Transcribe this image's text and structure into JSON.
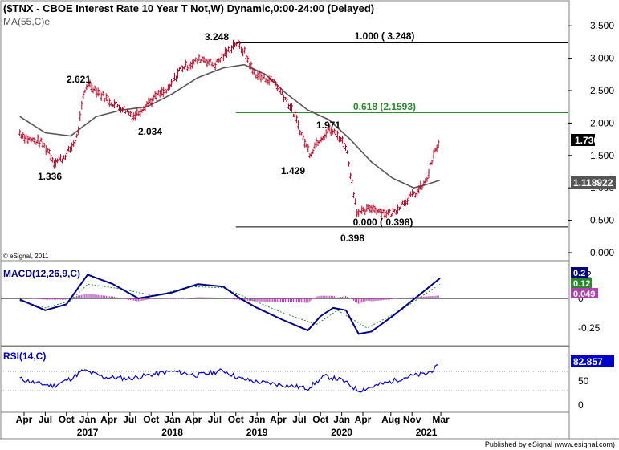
{
  "header": {
    "title": "($TNX - CBOE Interest Rate 10 Year T Not,W) Dynamic,0:00-24:00 (Delayed)",
    "ma_label": "MA(55,C)e"
  },
  "copyright": "© eSignal, 2011",
  "footer": "Published by eSignal (www.esignal.com)",
  "colors": {
    "price": "#b00020",
    "ma": "#555555",
    "fib_green": "#2a8a2a",
    "macd": "#000080",
    "signal": "#2a8a2a",
    "histogram": "#b040b0",
    "rsi": "#0000cc",
    "grid": "#808080"
  },
  "chart_data": [
    {
      "type": "line",
      "panel": "price",
      "title": "($TNX - CBOE Interest Rate 10 Year T Not,W) Dynamic,0:00-24:00 (Delayed)",
      "ylim": [
        0,
        3.6
      ],
      "yticks": [
        "3.500",
        "3.000",
        "2.500",
        "2.000",
        "1.500",
        "1.000",
        "0.500",
        "0.000"
      ],
      "series": [
        {
          "name": "$TNX",
          "x": [
            2016.2,
            2016.3,
            2016.45,
            2016.55,
            2016.6,
            2016.7,
            2016.8,
            2016.88,
            2016.95,
            2017.0,
            2017.15,
            2017.3,
            2017.45,
            2017.55,
            2017.7,
            2017.85,
            2017.95,
            2018.1,
            2018.2,
            2018.35,
            2018.5,
            2018.65,
            2018.75,
            2018.85,
            2018.95,
            2019.05,
            2019.2,
            2019.35,
            2019.45,
            2019.55,
            2019.63,
            2019.7,
            2019.85,
            2019.95,
            2020.05,
            2020.12,
            2020.18,
            2020.22,
            2020.35,
            2020.5,
            2020.6,
            2020.7,
            2020.8,
            2020.9,
            2021.0,
            2021.05,
            2021.1,
            2021.16
          ],
          "values": [
            1.85,
            1.75,
            1.7,
            1.55,
            1.4,
            1.45,
            1.6,
            1.8,
            2.4,
            2.621,
            2.45,
            2.3,
            2.2,
            2.1,
            2.3,
            2.45,
            2.5,
            2.85,
            2.9,
            3.0,
            2.9,
            3.1,
            3.248,
            3.1,
            2.8,
            2.7,
            2.65,
            2.35,
            2.1,
            1.75,
            1.52,
            1.7,
            1.9,
            1.82,
            1.65,
            1.1,
            0.65,
            0.6,
            0.7,
            0.62,
            0.6,
            0.75,
            0.85,
            0.95,
            1.1,
            1.35,
            1.55,
            1.73
          ]
        },
        {
          "name": "MA(55,C)e",
          "x": [
            2016.2,
            2016.5,
            2016.8,
            2017.1,
            2017.4,
            2017.7,
            2018.0,
            2018.3,
            2018.6,
            2018.85,
            2019.1,
            2019.35,
            2019.6,
            2019.85,
            2020.1,
            2020.35,
            2020.6,
            2020.85,
            2021.0,
            2021.16
          ],
          "values": [
            2.1,
            1.85,
            1.8,
            2.1,
            2.2,
            2.25,
            2.45,
            2.7,
            2.85,
            2.9,
            2.75,
            2.45,
            2.2,
            2.05,
            1.75,
            1.4,
            1.15,
            1.0,
            1.05,
            1.118922
          ]
        }
      ],
      "annotations": [
        "3.248",
        "2.621",
        "2.034",
        "1.336",
        "1.429",
        "1.971",
        "0.398",
        "1.000 ( 3.248)",
        "0.618 (2.1593)",
        "0.000 ( 0.398)"
      ],
      "value_labels": [
        "1.730",
        "1.118922"
      ]
    },
    {
      "type": "line",
      "panel": "macd",
      "title": "MACD(12,26,9,C)",
      "ylim": [
        -0.35,
        0.25
      ],
      "yticks": [
        "0.2",
        "0",
        "-0.25"
      ],
      "series": [
        {
          "name": "MACD",
          "x": [
            2016.2,
            2016.5,
            2016.75,
            2016.9,
            2017.0,
            2017.3,
            2017.6,
            2018.0,
            2018.3,
            2018.6,
            2018.8,
            2019.0,
            2019.3,
            2019.6,
            2019.75,
            2019.9,
            2020.05,
            2020.2,
            2020.35,
            2020.6,
            2020.9,
            2021.16
          ],
          "values": [
            -0.01,
            -0.1,
            -0.05,
            0.1,
            0.2,
            0.12,
            0.0,
            0.05,
            0.12,
            0.1,
            0.0,
            -0.08,
            -0.18,
            -0.27,
            -0.15,
            -0.08,
            -0.1,
            -0.3,
            -0.28,
            -0.15,
            0.02,
            0.17
          ]
        },
        {
          "name": "Signal",
          "x": [
            2016.2,
            2016.5,
            2016.8,
            2017.0,
            2017.4,
            2017.8,
            2018.2,
            2018.6,
            2018.9,
            2019.3,
            2019.7,
            2019.95,
            2020.3,
            2020.7,
            2021.16
          ],
          "values": [
            -0.02,
            -0.08,
            -0.02,
            0.12,
            0.08,
            0.02,
            0.1,
            0.09,
            0.0,
            -0.12,
            -0.22,
            -0.1,
            -0.25,
            -0.1,
            0.12
          ]
        }
      ],
      "value_labels": [
        "0.2",
        "0.12",
        "0.049"
      ]
    },
    {
      "type": "line",
      "panel": "rsi",
      "title": "RSI(14,C)",
      "ylim": [
        0,
        100
      ],
      "yticks": [
        "50",
        "0"
      ],
      "series": [
        {
          "name": "RSI(14,C)",
          "x": [
            2016.2,
            2016.4,
            2016.6,
            2016.8,
            2016.95,
            2017.2,
            2017.5,
            2017.8,
            2018.0,
            2018.3,
            2018.6,
            2018.8,
            2019.0,
            2019.3,
            2019.6,
            2019.8,
            2020.0,
            2020.2,
            2020.4,
            2020.6,
            2020.8,
            2021.0,
            2021.16
          ],
          "values": [
            55,
            45,
            40,
            55,
            72,
            58,
            55,
            65,
            70,
            62,
            72,
            55,
            48,
            42,
            35,
            60,
            52,
            30,
            40,
            50,
            60,
            65,
            82.857
          ]
        }
      ],
      "value_labels": [
        "82.857"
      ]
    }
  ],
  "x_axis": {
    "month_labels": [
      "Apr",
      "Jul",
      "Oct",
      "Jan",
      "Apr",
      "Jul",
      "Oct",
      "Jan",
      "Apr",
      "Jul",
      "Oct",
      "Jan",
      "Apr",
      "Jul",
      "Oct",
      "Jan",
      "Apr",
      "Aug",
      "Nov",
      "Mar"
    ],
    "year_labels": [
      "2017",
      "2018",
      "2019",
      "2020",
      "2021"
    ]
  }
}
